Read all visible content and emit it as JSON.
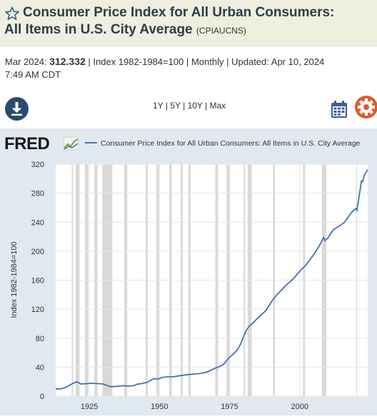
{
  "header": {
    "title_line1": "Consumer Price Index for All Urban Consumers:",
    "title_line2": "All Items in U.S. City Average",
    "series_code": "(CPIAUCNS)"
  },
  "meta": {
    "date_label": "Mar 2024:",
    "value": "312.332",
    "separator": "|",
    "units": "Index 1982-1984=100",
    "frequency": "Monthly",
    "updated_label": "Updated:",
    "updated_date": "Apr 10, 2024",
    "updated_time": "7:49 AM CDT"
  },
  "toolbar": {
    "range_1y": "1Y",
    "range_5y": "5Y",
    "range_10y": "10Y",
    "range_max": "Max"
  },
  "icons": {
    "download": "download-icon",
    "calendar": "calendar-icon",
    "settings": "gear-icon",
    "favorite": "star-icon"
  },
  "colors": {
    "line": "#4572a7",
    "recession": "#d9d9d9",
    "chart_bg": "#e1e9f0",
    "title_bg": "#efefe0",
    "download_button": "#2b4a6f",
    "gear": "#e05a2b",
    "calendar": "#3a5f8f"
  },
  "brand": {
    "logo_text": "FRED"
  },
  "chart_data": {
    "type": "line",
    "title": "",
    "legend": "Consumer Price Index for All Urban Consumers: All Items in U.S. City Average",
    "legend_position": "top",
    "ylabel": "Index 1982-1984=100",
    "xlabel": "",
    "xlim": [
      1913,
      2024.25
    ],
    "ylim": [
      0,
      320
    ],
    "y_ticks": [
      0,
      40,
      80,
      120,
      160,
      200,
      240,
      280,
      320
    ],
    "x_ticks": [
      "1925",
      "1950",
      "1975",
      "2000"
    ],
    "grid": true,
    "recessions": [
      [
        1918.7,
        1919.2
      ],
      [
        1920.1,
        1921.5
      ],
      [
        1923.4,
        1924.6
      ],
      [
        1926.8,
        1927.9
      ],
      [
        1929.6,
        1933.2
      ],
      [
        1937.4,
        1938.5
      ],
      [
        1945.1,
        1945.8
      ],
      [
        1948.9,
        1949.8
      ],
      [
        1953.5,
        1954.4
      ],
      [
        1957.6,
        1958.3
      ],
      [
        1960.3,
        1961.1
      ],
      [
        1969.9,
        1970.9
      ],
      [
        1973.9,
        1975.2
      ],
      [
        1980.0,
        1980.5
      ],
      [
        1981.5,
        1982.9
      ],
      [
        1990.5,
        1991.2
      ],
      [
        2001.2,
        2001.9
      ],
      [
        2007.9,
        2009.5
      ],
      [
        2020.1,
        2020.4
      ]
    ],
    "series": [
      {
        "name": "Consumer Price Index for All Urban Consumers: All Items in U.S. City Average",
        "x": [
          1913,
          1915,
          1917,
          1918,
          1919,
          1920.5,
          1921.5,
          1922,
          1925,
          1926,
          1929,
          1930,
          1932,
          1933,
          1935,
          1937,
          1939,
          1941,
          1942,
          1944,
          1946,
          1947,
          1948,
          1949,
          1950,
          1951,
          1953,
          1955,
          1957,
          1960,
          1963,
          1965,
          1967,
          1970,
          1972,
          1973,
          1974,
          1975,
          1976,
          1977,
          1978,
          1979,
          1980,
          1981,
          1982,
          1983,
          1985,
          1988,
          1990,
          1992,
          1995,
          1998,
          2000,
          2002,
          2005,
          2007,
          2008.5,
          2009,
          2010,
          2012,
          2015,
          2016,
          2018,
          2019,
          2020,
          2020.4,
          2021,
          2022,
          2022.5,
          2023,
          2024.2
        ],
        "values": [
          9.9,
          10.1,
          12.8,
          15.1,
          17.3,
          20.0,
          17.9,
          16.8,
          17.5,
          17.7,
          17.1,
          16.7,
          13.7,
          13.0,
          13.7,
          14.4,
          13.9,
          14.7,
          16.3,
          17.6,
          19.5,
          22.3,
          24.1,
          23.8,
          24.1,
          26.0,
          26.7,
          26.8,
          28.1,
          29.6,
          30.6,
          31.5,
          33.4,
          38.8,
          41.8,
          44.4,
          49.3,
          53.8,
          56.9,
          60.6,
          65.2,
          72.6,
          82.4,
          90.9,
          96.5,
          99.6,
          107.6,
          118.3,
          130.7,
          140.3,
          152.4,
          163.0,
          172.2,
          179.9,
          195.3,
          207.3,
          218.8,
          214.5,
          218.1,
          229.6,
          237.0,
          240.0,
          251.1,
          255.7,
          258.8,
          256.4,
          270.9,
          296.8,
          296.2,
          304.7,
          312.3
        ]
      }
    ]
  }
}
